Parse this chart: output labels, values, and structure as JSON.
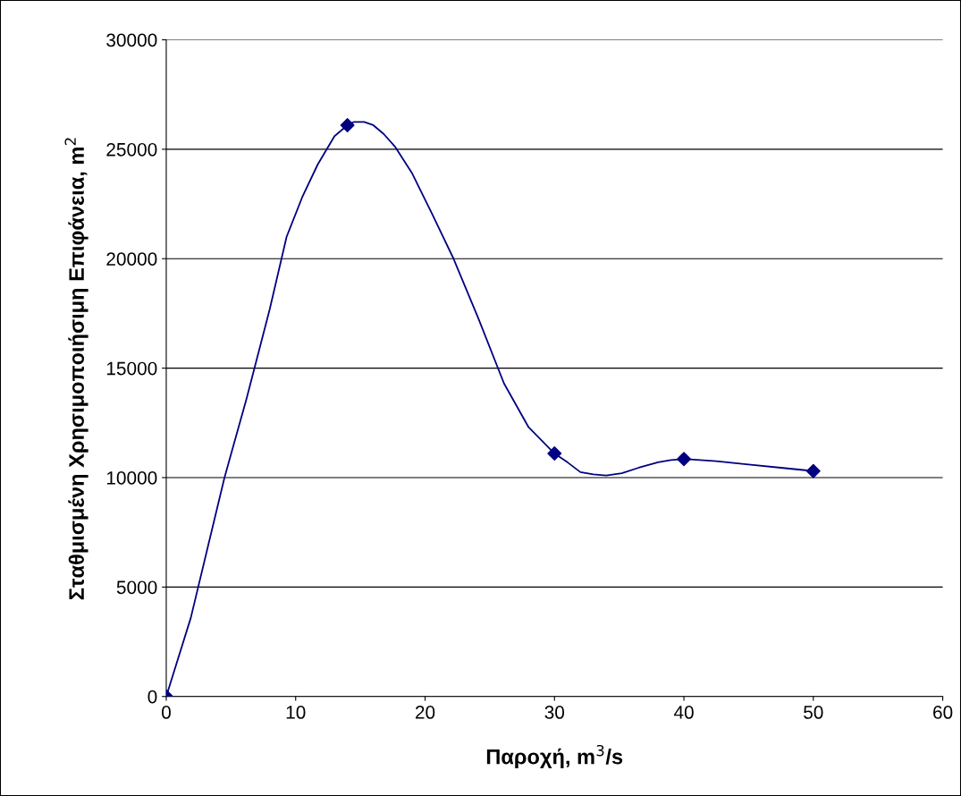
{
  "chart_data": {
    "type": "line",
    "xlabel": "Παροχή, m$^{3}$/s",
    "ylabel": "Σταθμισμένη Χρησιμοποιήσιμη Επιφάνεια, m$^{2}$",
    "x": [
      0,
      14,
      30,
      40,
      50
    ],
    "series": [
      {
        "marker": "none",
        "color": "#000080",
        "x": [
          0,
          1.9,
          3.2,
          4.5,
          6.2,
          8,
          9.3,
          10.5,
          11.7,
          13,
          14,
          14.5,
          15.3,
          16,
          16.8,
          17.7,
          19,
          20.5,
          22.2,
          24.1,
          26.1,
          28,
          30,
          31,
          32,
          33,
          34,
          35.2,
          36.5,
          38,
          39,
          40,
          42.5,
          45,
          47.5,
          50
        ],
        "values": [
          0,
          3600,
          6800,
          10000,
          13600,
          17700,
          21000,
          22800,
          24300,
          25600,
          26100,
          26250,
          26250,
          26100,
          25700,
          25100,
          23900,
          22100,
          20000,
          17300,
          14300,
          12300,
          11100,
          10700,
          10250,
          10150,
          10100,
          10200,
          10450,
          10700,
          10800,
          10850,
          10750,
          10600,
          10450,
          10300
        ]
      },
      {
        "type": "scatter",
        "marker": "diamond",
        "color": "#000080",
        "values": [
          0,
          26100,
          11100,
          10850,
          10300
        ]
      }
    ],
    "xlim": [
      0,
      60
    ],
    "xticks": [
      0,
      10,
      20,
      30,
      40,
      50,
      60
    ],
    "ylim": [
      0,
      30000
    ],
    "yticks": [
      0,
      5000,
      10000,
      15000,
      20000,
      25000,
      30000
    ],
    "grid": "y",
    "line_style": "solid",
    "legend": false
  }
}
